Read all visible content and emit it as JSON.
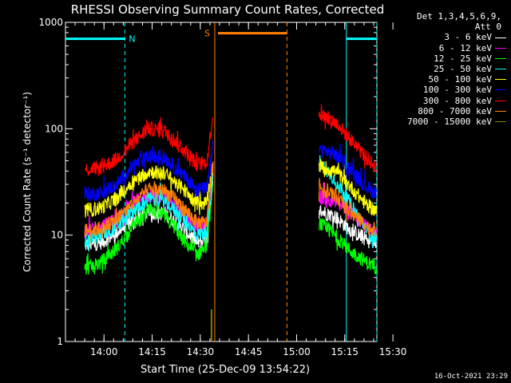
{
  "chart_data": {
    "type": "line",
    "title": "RHESSI Observing Summary Count Rates, Corrected",
    "xlabel": "Start Time (25-Dec-09 13:54:22)",
    "ylabel": "Corrected Count Rate (s⁻¹ detector⁻¹)",
    "yscale": "log",
    "xlim": [
      -6,
      91
    ],
    "ylim": [
      1,
      1000
    ],
    "x_ticks": [
      {
        "m": 6,
        "label": "14:00"
      },
      {
        "m": 21,
        "label": "14:15"
      },
      {
        "m": 36,
        "label": "14:30"
      },
      {
        "m": 51,
        "label": "14:45"
      },
      {
        "m": 66,
        "label": "15:00"
      },
      {
        "m": 81,
        "label": "15:15"
      },
      {
        "m": 96,
        "label": "15:30"
      }
    ],
    "y_ticks": [
      {
        "v": 1,
        "label": "1"
      },
      {
        "v": 10,
        "label": "10"
      },
      {
        "v": 100,
        "label": "100"
      },
      {
        "v": 1000,
        "label": "1000"
      }
    ],
    "series": [
      {
        "name": "3 - 6 keV",
        "color": "#ffffff",
        "seg1": [
          [
            0,
            8
          ],
          [
            5,
            8.5
          ],
          [
            10,
            10.5
          ],
          [
            15,
            14
          ],
          [
            20,
            16.5
          ],
          [
            25,
            16
          ],
          [
            30,
            12
          ],
          [
            35,
            8.5
          ],
          [
            38,
            9
          ],
          [
            40,
            30
          ]
        ],
        "seg2": [
          [
            73,
            17
          ],
          [
            78,
            15
          ],
          [
            83,
            11
          ],
          [
            88,
            9
          ],
          [
            91,
            8
          ]
        ]
      },
      {
        "name": "6 - 12 keV",
        "color": "#ff00ff",
        "seg1": [
          [
            0,
            11
          ],
          [
            5,
            12
          ],
          [
            10,
            14
          ],
          [
            15,
            20
          ],
          [
            20,
            24
          ],
          [
            25,
            23
          ],
          [
            30,
            17
          ],
          [
            35,
            12
          ],
          [
            38,
            13
          ],
          [
            40,
            40
          ]
        ],
        "seg2": [
          [
            73,
            23
          ],
          [
            78,
            21
          ],
          [
            83,
            16
          ],
          [
            88,
            12
          ],
          [
            91,
            11
          ]
        ]
      },
      {
        "name": "12 - 25 keV",
        "color": "#00ff00",
        "seg1": [
          [
            0,
            4.8
          ],
          [
            5,
            5.5
          ],
          [
            10,
            7.5
          ],
          [
            15,
            12
          ],
          [
            20,
            17
          ],
          [
            25,
            15
          ],
          [
            30,
            9.5
          ],
          [
            35,
            6.5
          ],
          [
            38,
            8
          ],
          [
            40,
            30
          ]
        ],
        "seg2": [
          [
            73,
            13
          ],
          [
            78,
            10
          ],
          [
            83,
            7
          ],
          [
            88,
            5.5
          ],
          [
            91,
            5
          ]
        ]
      },
      {
        "name": "25 - 50 keV",
        "color": "#00ffff",
        "seg1": [
          [
            0,
            9
          ],
          [
            5,
            10
          ],
          [
            10,
            12
          ],
          [
            15,
            17
          ],
          [
            20,
            22
          ],
          [
            25,
            21
          ],
          [
            30,
            15
          ],
          [
            35,
            10
          ],
          [
            38,
            11
          ],
          [
            40,
            35
          ]
        ],
        "seg2": [
          [
            73,
            50
          ],
          [
            78,
            33
          ],
          [
            83,
            19
          ],
          [
            88,
            11
          ],
          [
            91,
            9
          ]
        ]
      },
      {
        "name": "50 - 100 keV",
        "color": "#ffff00",
        "seg1": [
          [
            0,
            17
          ],
          [
            5,
            18
          ],
          [
            10,
            22
          ],
          [
            15,
            32
          ],
          [
            20,
            40
          ],
          [
            25,
            38
          ],
          [
            30,
            28
          ],
          [
            35,
            20
          ],
          [
            38,
            20
          ],
          [
            40,
            45
          ]
        ],
        "seg2": [
          [
            73,
            45
          ],
          [
            78,
            40
          ],
          [
            83,
            28
          ],
          [
            88,
            19
          ],
          [
            91,
            17
          ]
        ]
      },
      {
        "name": "100 - 300 keV",
        "color": "#0000ff",
        "seg1": [
          [
            0,
            24
          ],
          [
            5,
            25
          ],
          [
            10,
            30
          ],
          [
            15,
            45
          ],
          [
            20,
            55
          ],
          [
            25,
            53
          ],
          [
            30,
            38
          ],
          [
            35,
            27
          ],
          [
            38,
            27
          ],
          [
            40,
            70
          ]
        ],
        "seg2": [
          [
            73,
            65
          ],
          [
            78,
            58
          ],
          [
            83,
            40
          ],
          [
            88,
            28
          ],
          [
            91,
            24
          ]
        ]
      },
      {
        "name": "300 - 800 keV",
        "color": "#ff0000",
        "seg1": [
          [
            0,
            41
          ],
          [
            5,
            43
          ],
          [
            10,
            52
          ],
          [
            15,
            75
          ],
          [
            20,
            100
          ],
          [
            25,
            95
          ],
          [
            30,
            68
          ],
          [
            35,
            46
          ],
          [
            38,
            48
          ],
          [
            40,
            140
          ]
        ],
        "seg2": [
          [
            73,
            138
          ],
          [
            78,
            115
          ],
          [
            83,
            78
          ],
          [
            88,
            52
          ],
          [
            91,
            43
          ]
        ]
      },
      {
        "name": "800 - 7000 keV",
        "color": "#ff8000",
        "seg1": [
          [
            0,
            11
          ],
          [
            5,
            11.5
          ],
          [
            10,
            14
          ],
          [
            15,
            20
          ],
          [
            20,
            27
          ],
          [
            25,
            26
          ],
          [
            30,
            19
          ],
          [
            35,
            13
          ],
          [
            38,
            13
          ],
          [
            40,
            50
          ]
        ],
        "seg2": [
          [
            73,
            28
          ],
          [
            78,
            24
          ],
          [
            83,
            16
          ],
          [
            88,
            12
          ],
          [
            91,
            11
          ]
        ]
      },
      {
        "name": "7000 - 15000 keV",
        "color": "#808000",
        "seg1": [
          [
            39.5,
            1
          ],
          [
            39.5,
            2
          ]
        ],
        "seg2": []
      }
    ],
    "annotations": [
      {
        "label": "N",
        "color": "#00ffff",
        "x": 12.5,
        "y": 700,
        "band": [
          [
            -6,
            12.5
          ],
          [
            81.5,
            91
          ]
        ],
        "marks": [
          12.5,
          81.5,
          91
        ]
      },
      {
        "label": "S",
        "color": "#ff8000",
        "x": 40.5,
        "y": 790,
        "band": [
          [
            41.5,
            63
          ]
        ],
        "marks": [
          40.5,
          63
        ]
      }
    ]
  },
  "legend": {
    "header_line1": "Det 1,3,4,5,6,9,",
    "header_line2": "Att 0"
  },
  "timestamp": "16-Oct-2021 23:29"
}
